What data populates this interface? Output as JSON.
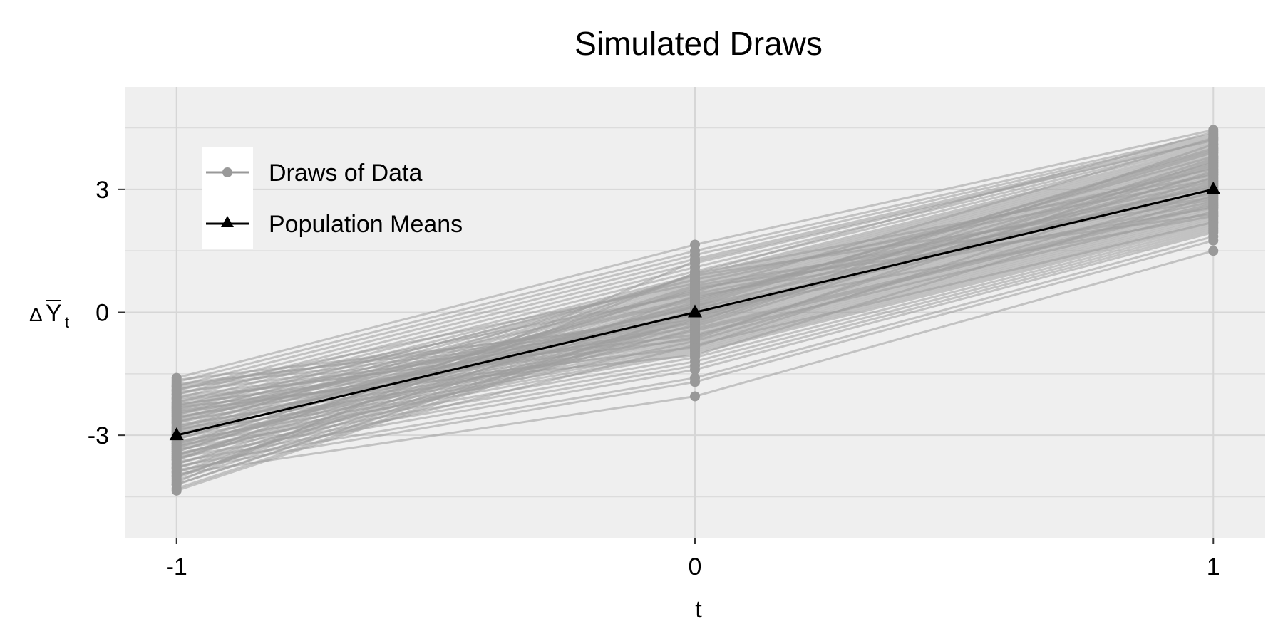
{
  "chart_data": {
    "type": "line",
    "title": "Simulated Draws",
    "xlabel": "t",
    "ylabel": {
      "symbol": "Δ",
      "main": "Y",
      "subscript": "t"
    },
    "x_ticks": [
      "-1",
      "0",
      "1"
    ],
    "y_ticks": [
      "-3",
      "0",
      "3"
    ],
    "x": [
      -1,
      0,
      1
    ],
    "xlim": [
      -1.1,
      1.1
    ],
    "ylim": [
      -5.5,
      5.5
    ],
    "grid": true,
    "legend_placement": "top-left",
    "legend": [
      {
        "name": "Draws of Data",
        "marker": "circle"
      },
      {
        "name": "Population Means",
        "marker": "triangle"
      }
    ],
    "population_means": [
      -3,
      0,
      3
    ],
    "draws": [
      [
        -1.6,
        1.65,
        4.45
      ],
      [
        -1.7,
        1.5,
        4.35
      ],
      [
        -1.8,
        1.4,
        4.3
      ],
      [
        -1.9,
        1.3,
        4.25
      ],
      [
        -2.0,
        1.2,
        4.2
      ],
      [
        -2.1,
        1.1,
        4.15
      ],
      [
        -2.2,
        1.0,
        4.1
      ],
      [
        -2.3,
        0.9,
        4.05
      ],
      [
        -2.4,
        0.85,
        4.0
      ],
      [
        -2.5,
        0.8,
        3.95
      ],
      [
        -2.6,
        0.75,
        3.9
      ],
      [
        -2.7,
        0.7,
        3.85
      ],
      [
        -2.8,
        0.65,
        3.8
      ],
      [
        -2.9,
        0.6,
        3.75
      ],
      [
        -3.0,
        0.55,
        3.7
      ],
      [
        -3.1,
        0.5,
        3.65
      ],
      [
        -3.2,
        0.45,
        3.6
      ],
      [
        -3.3,
        0.4,
        3.55
      ],
      [
        -3.4,
        0.35,
        3.5
      ],
      [
        -3.5,
        0.3,
        3.45
      ],
      [
        -3.6,
        0.25,
        3.4
      ],
      [
        -3.7,
        0.2,
        3.35
      ],
      [
        -3.8,
        0.15,
        3.3
      ],
      [
        -3.9,
        0.1,
        3.25
      ],
      [
        -4.0,
        0.05,
        3.2
      ],
      [
        -4.1,
        0.0,
        3.15
      ],
      [
        -4.2,
        -0.05,
        3.1
      ],
      [
        -4.3,
        -0.1,
        3.05
      ],
      [
        -4.35,
        -0.15,
        3.0
      ],
      [
        -1.65,
        -0.2,
        2.95
      ],
      [
        -1.75,
        -0.25,
        2.9
      ],
      [
        -1.85,
        -0.3,
        2.85
      ],
      [
        -1.95,
        -0.35,
        2.8
      ],
      [
        -2.05,
        -0.4,
        2.75
      ],
      [
        -2.15,
        -0.45,
        2.7
      ],
      [
        -2.25,
        -0.5,
        2.65
      ],
      [
        -2.35,
        -0.55,
        2.6
      ],
      [
        -2.45,
        -0.6,
        2.55
      ],
      [
        -2.55,
        -0.65,
        2.5
      ],
      [
        -2.65,
        -0.7,
        2.45
      ],
      [
        -2.75,
        -0.75,
        2.4
      ],
      [
        -2.85,
        -0.8,
        2.35
      ],
      [
        -2.95,
        -0.85,
        2.3
      ],
      [
        -3.05,
        -0.9,
        2.25
      ],
      [
        -3.15,
        -0.95,
        2.2
      ],
      [
        -3.25,
        -1.0,
        2.15
      ],
      [
        -3.35,
        -1.1,
        2.1
      ],
      [
        -3.45,
        -1.2,
        2.05
      ],
      [
        -3.55,
        -1.3,
        2.0
      ],
      [
        -3.65,
        -1.4,
        1.95
      ],
      [
        -3.75,
        -1.6,
        1.85
      ],
      [
        -3.85,
        -1.7,
        1.75
      ],
      [
        -3.95,
        -2.05,
        1.5
      ],
      [
        -4.05,
        0.95,
        4.4
      ],
      [
        -4.15,
        1.25,
        4.2
      ],
      [
        -2.2,
        -0.15,
        3.6
      ],
      [
        -2.6,
        0.35,
        3.2
      ],
      [
        -3.2,
        -0.45,
        2.6
      ],
      [
        -2.9,
        0.15,
        3.9
      ],
      [
        -3.4,
        0.6,
        2.4
      ],
      [
        -2.4,
        -0.85,
        3.3
      ],
      [
        -3.7,
        -0.3,
        3.75
      ],
      [
        -2.0,
        0.45,
        2.9
      ],
      [
        -3.0,
        -0.6,
        3.45
      ],
      [
        -2.5,
        0.1,
        2.7
      ],
      [
        -3.3,
        0.25,
        3.95
      ],
      [
        -2.7,
        -0.05,
        3.1
      ],
      [
        -3.9,
        -0.8,
        2.2
      ],
      [
        -1.9,
        0.7,
        3.5
      ],
      [
        -4.0,
        0.4,
        2.55
      ],
      [
        -2.3,
        -1.05,
        2.85
      ],
      [
        -3.6,
        0.95,
        3.35
      ],
      [
        -2.8,
        -0.25,
        4.1
      ],
      [
        -3.1,
        0.55,
        3.05
      ],
      [
        -2.1,
        -0.55,
        2.45
      ],
      [
        -3.5,
        0.05,
        3.65
      ],
      [
        -2.65,
        0.3,
        3.8
      ],
      [
        -3.45,
        -0.7,
        2.95
      ],
      [
        -2.35,
        0.8,
        3.25
      ],
      [
        -3.8,
        -0.4,
        2.65
      ],
      [
        -2.95,
        0.2,
        4.0
      ],
      [
        -1.8,
        -0.1,
        3.15
      ],
      [
        -3.25,
        0.65,
        2.75
      ],
      [
        -2.55,
        -0.35,
        3.55
      ],
      [
        -4.2,
        0.0,
        2.35
      ],
      [
        -2.45,
        0.5,
        4.25
      ],
      [
        -3.55,
        -0.2,
        3.4
      ],
      [
        -2.85,
        0.9,
        2.8
      ],
      [
        -2.25,
        -0.65,
        3.7
      ],
      [
        -3.35,
        0.15,
        3.0
      ]
    ]
  }
}
